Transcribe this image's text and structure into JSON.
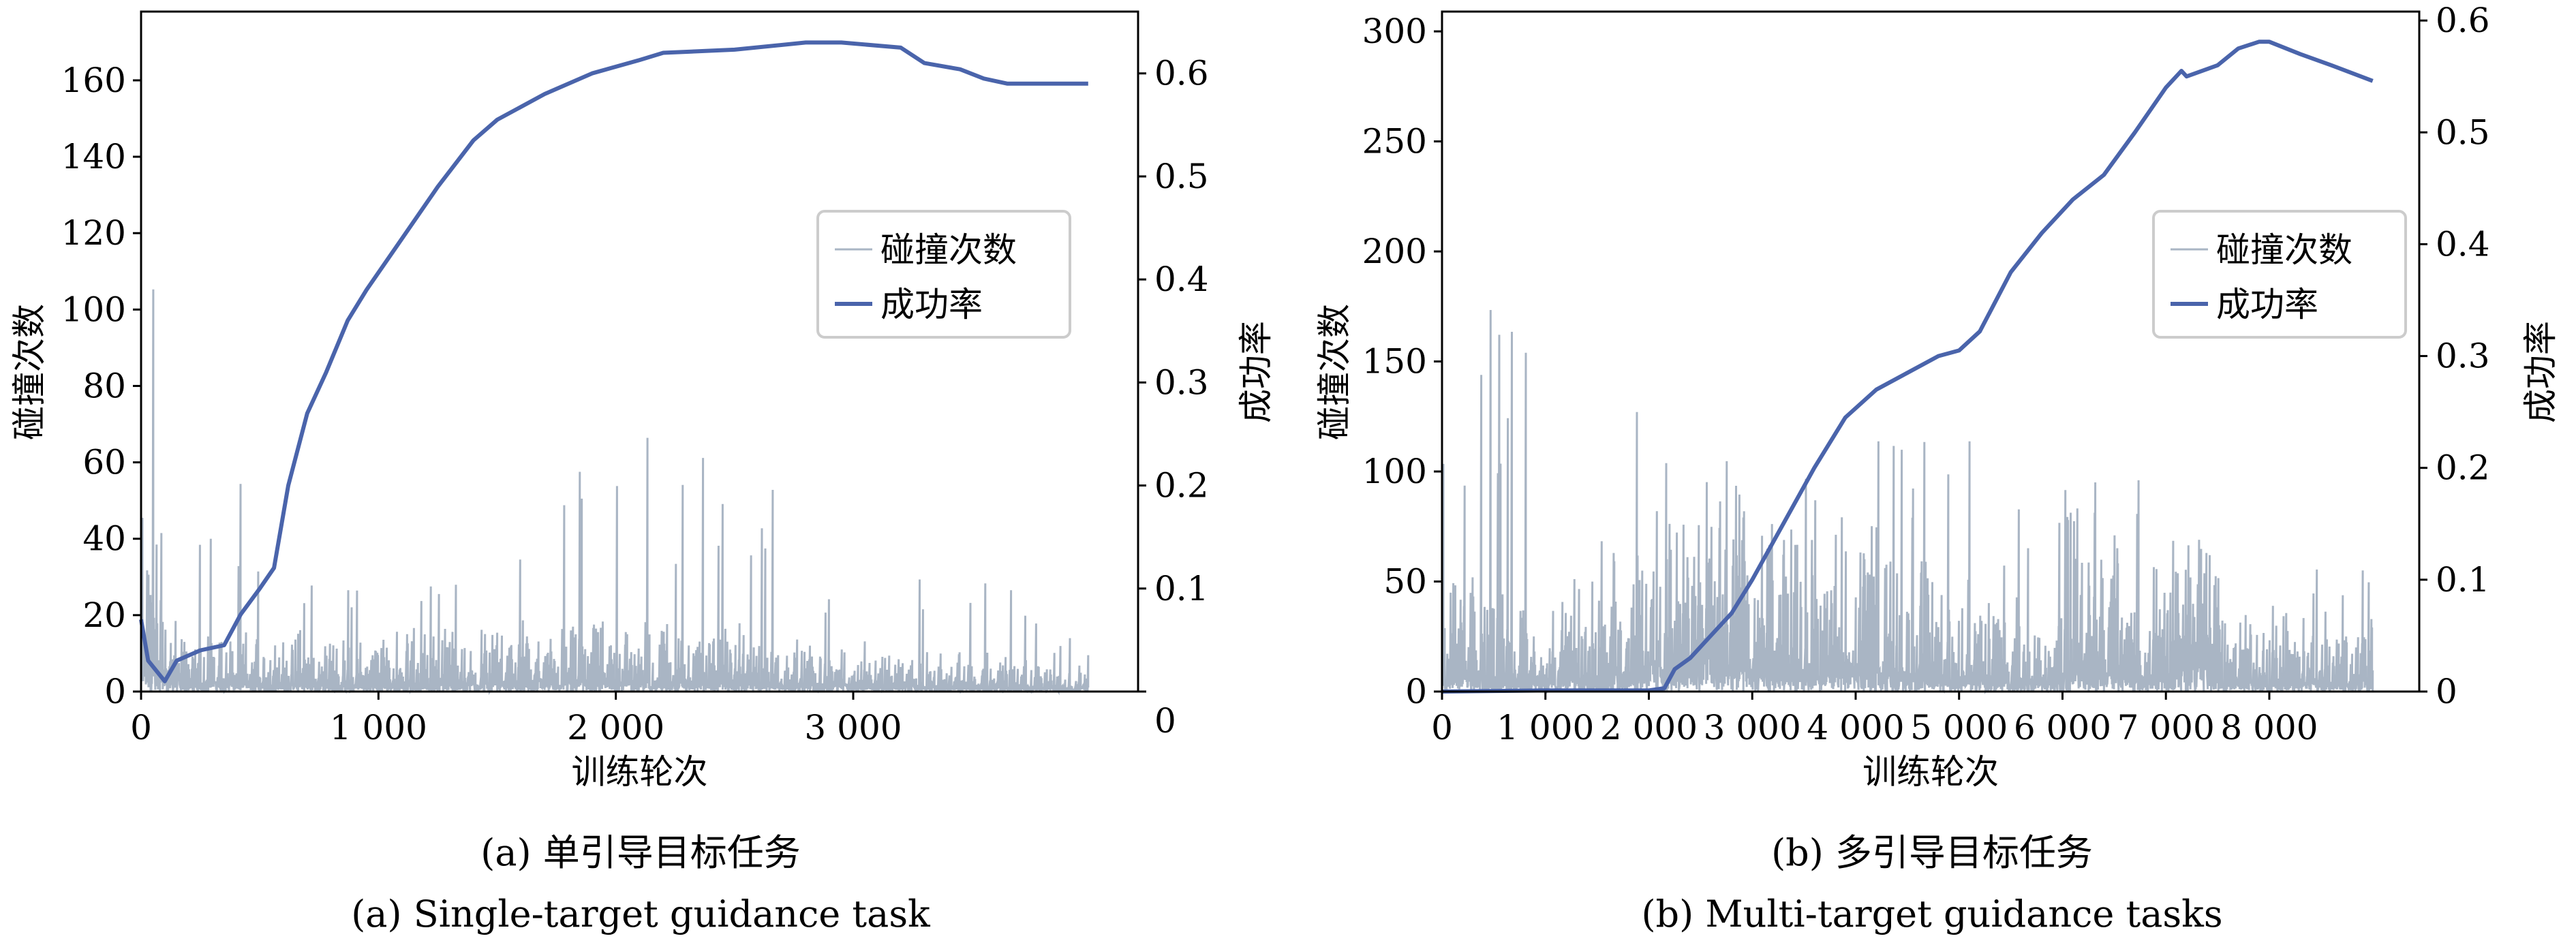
{
  "colors": {
    "collision": "#a9b5c4",
    "success": "#4a64ab",
    "axis": "#000000",
    "legend_border": "#cccccc"
  },
  "chart_data": [
    {
      "type": "line",
      "panel": "a",
      "caption_cn": "(a) 单引导目标任务",
      "caption_en": "(a) Single-target guidance task",
      "xlabel": "训练轮次",
      "ylabel": "碰撞次数",
      "y2label": "成功率",
      "xlim": [
        0,
        4200
      ],
      "ylim": [
        0,
        178
      ],
      "y2lim": [
        0,
        0.66
      ],
      "xticks": [
        0,
        1000,
        2000,
        3000
      ],
      "xtick_labels": [
        "0",
        "1 000",
        "2 000",
        "3 000"
      ],
      "yticks": [
        0,
        20,
        40,
        60,
        80,
        100,
        120,
        140,
        160
      ],
      "ytick_labels": [
        "0",
        "20",
        "40",
        "60",
        "80",
        "100",
        "120",
        "140",
        "160"
      ],
      "y2ticks": [
        0,
        0.1,
        0.2,
        0.3,
        0.4,
        0.5,
        0.6
      ],
      "y2tick_labels": [
        "0",
        "0.1",
        "0.2",
        "0.3",
        "0.4",
        "0.5",
        "0.6"
      ],
      "legend": {
        "placement": "center-right",
        "entries": [
          "碰撞次数",
          "成功率"
        ]
      },
      "series": [
        {
          "name": "碰撞次数",
          "axis": "left",
          "kind": "noisy",
          "x_end": 3990,
          "envelope": {
            "x": [
              0,
              50,
              100,
              200,
              350,
              600,
              1000,
              1500,
              2000,
              2500,
              3000,
              3500,
              3990
            ],
            "typical": [
              40,
              30,
              12,
              9,
              10,
              8,
              9,
              10,
              11,
              10,
              7,
              6,
              4
            ],
            "peak": [
              170,
              140,
              45,
              30,
              66,
              28,
              30,
              33,
              70,
              68,
              25,
              37,
              10
            ]
          }
        },
        {
          "name": "成功率",
          "axis": "right",
          "x": [
            0,
            30,
            100,
            150,
            250,
            350,
            420,
            500,
            560,
            620,
            700,
            780,
            870,
            950,
            1100,
            1250,
            1400,
            1500,
            1700,
            1900,
            2100,
            2200,
            2500,
            2800,
            2950,
            3200,
            3300,
            3450,
            3550,
            3650,
            3990
          ],
          "y": [
            0.07,
            0.03,
            0.01,
            0.03,
            0.04,
            0.045,
            0.075,
            0.1,
            0.12,
            0.2,
            0.27,
            0.31,
            0.36,
            0.39,
            0.44,
            0.49,
            0.535,
            0.555,
            0.58,
            0.6,
            0.613,
            0.62,
            0.623,
            0.63,
            0.63,
            0.625,
            0.61,
            0.604,
            0.595,
            0.59,
            0.59
          ]
        }
      ]
    },
    {
      "type": "line",
      "panel": "b",
      "caption_cn": "(b) 多引导目标任务",
      "caption_en": "(b) Multi-target guidance tasks",
      "xlabel": "训练轮次",
      "ylabel": "碰撞次数",
      "y2label": "成功率",
      "xlim": [
        0,
        9450
      ],
      "ylim": [
        0,
        309
      ],
      "y2lim": [
        0,
        0.608
      ],
      "xticks": [
        0,
        1000,
        2000,
        3000,
        4000,
        5000,
        6000,
        7000,
        8000
      ],
      "xtick_labels": [
        "0",
        "1 000",
        "2 000",
        "3 000",
        "4 000",
        "5 000",
        "6 000",
        "7 000",
        "8 000"
      ],
      "yticks": [
        0,
        50,
        100,
        150,
        200,
        250,
        300
      ],
      "ytick_labels": [
        "0",
        "50",
        "100",
        "150",
        "200",
        "250",
        "300"
      ],
      "y2ticks": [
        0,
        0.1,
        0.2,
        0.3,
        0.4,
        0.5,
        0.6
      ],
      "y2tick_labels": [
        "0",
        "0.1",
        "0.2",
        "0.3",
        "0.4",
        "0.5",
        "0.6"
      ],
      "legend": {
        "placement": "center-right",
        "entries": [
          "碰撞次数",
          "成功率"
        ]
      },
      "series": [
        {
          "name": "碰撞次数",
          "axis": "left",
          "kind": "noisy",
          "x_end": 9000,
          "envelope": {
            "x": [
              0,
              500,
              1000,
              1500,
              1800,
              2200,
              2600,
              3000,
              3500,
              4000,
              4500,
              5000,
              5500,
              5900,
              6100,
              6500,
              6800,
              7000,
              7400,
              7600,
              8000,
              8500,
              9000
            ],
            "typical": [
              30,
              25,
              22,
              25,
              45,
              50,
              60,
              45,
              45,
              40,
              35,
              30,
              25,
              15,
              55,
              45,
              20,
              55,
              45,
              20,
              20,
              20,
              20
            ],
            "peak": [
              175,
              180,
              150,
              110,
              140,
              135,
              125,
              115,
              115,
              120,
              110,
              130,
              100,
              60,
              115,
              95,
              100,
              85,
              65,
              40,
              45,
              65,
              55
            ]
          }
        },
        {
          "name": "成功率",
          "axis": "right",
          "x": [
            0,
            1000,
            2000,
            2150,
            2250,
            2400,
            2600,
            2800,
            3000,
            3300,
            3600,
            3900,
            4200,
            4500,
            4800,
            5000,
            5200,
            5500,
            5800,
            6100,
            6400,
            6700,
            7000,
            7150,
            7200,
            7500,
            7700,
            7900,
            8000,
            8300,
            8600,
            9000
          ],
          "y": [
            0,
            0.001,
            0.001,
            0.003,
            0.02,
            0.03,
            0.05,
            0.07,
            0.1,
            0.15,
            0.2,
            0.245,
            0.27,
            0.285,
            0.3,
            0.305,
            0.322,
            0.375,
            0.41,
            0.44,
            0.462,
            0.5,
            0.54,
            0.555,
            0.55,
            0.56,
            0.575,
            0.581,
            0.581,
            0.57,
            0.56,
            0.546
          ]
        }
      ]
    }
  ]
}
